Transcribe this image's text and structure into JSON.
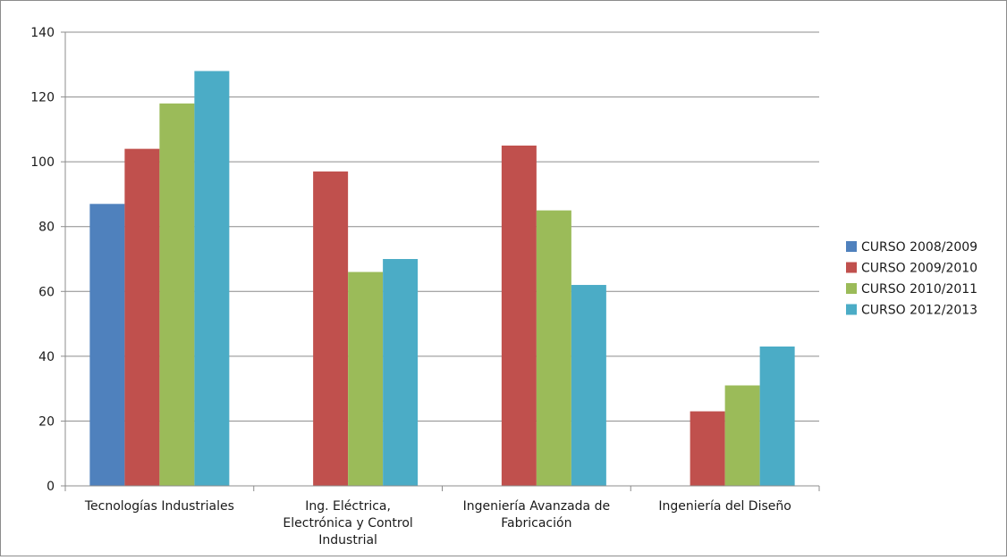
{
  "chart_data": {
    "type": "bar",
    "title": "",
    "xlabel": "",
    "ylabel": "",
    "ylim": [
      0,
      140
    ],
    "yticks": [
      0,
      20,
      40,
      60,
      80,
      100,
      120,
      140
    ],
    "grid": true,
    "legend_position": "right",
    "categories": [
      [
        "Tecnologías Industriales"
      ],
      [
        "Ing.  Eléctrica,",
        "Electrónica y Control",
        "Industrial"
      ],
      [
        "Ingeniería Avanzada de",
        "Fabricación"
      ],
      [
        "Ingeniería del Diseño"
      ]
    ],
    "series": [
      {
        "name": "CURSO 2008/2009",
        "color": "#4f81bd",
        "values": [
          87,
          null,
          null,
          null
        ]
      },
      {
        "name": "CURSO 2009/2010",
        "color": "#c0504d",
        "values": [
          104,
          97,
          105,
          23
        ]
      },
      {
        "name": "CURSO 2010/2011",
        "color": "#9bbb59",
        "values": [
          118,
          66,
          85,
          31
        ]
      },
      {
        "name": "CURSO 2012/2013",
        "color": "#4bacc6",
        "values": [
          128,
          70,
          62,
          43
        ]
      }
    ]
  }
}
